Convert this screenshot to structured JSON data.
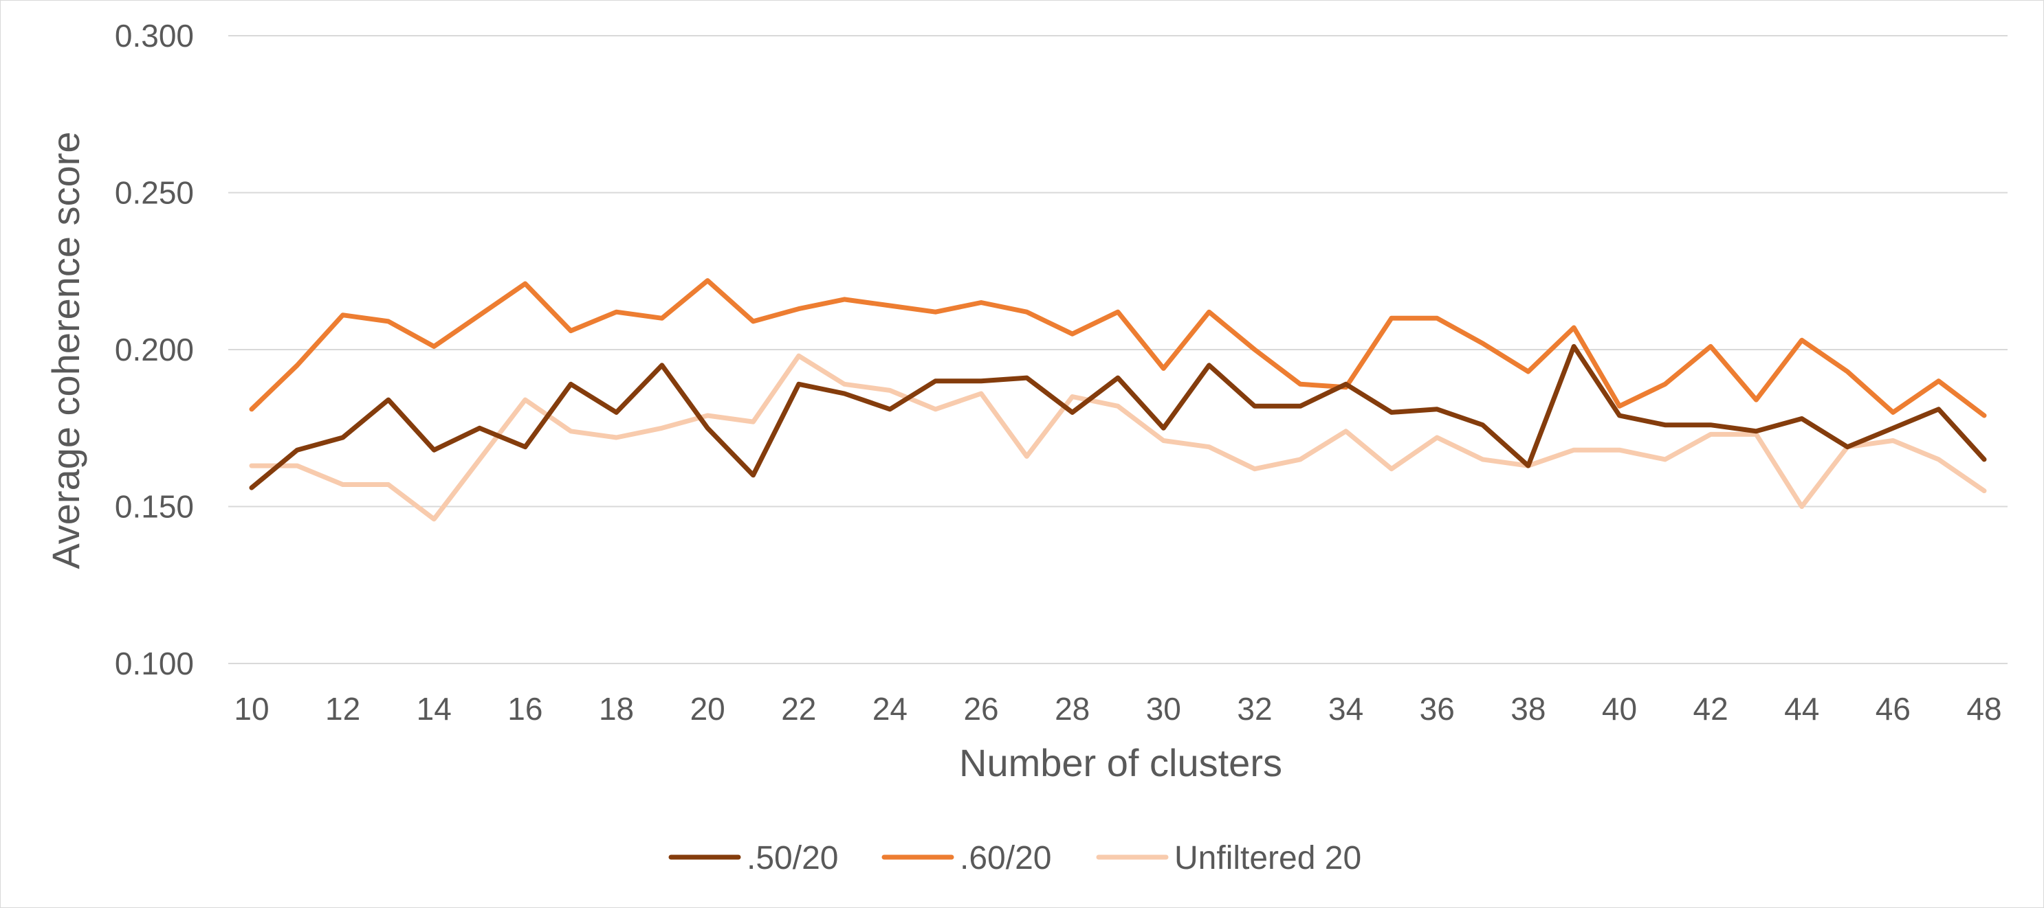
{
  "chart_data": {
    "type": "line",
    "title": "",
    "xlabel": "Number of clusters",
    "ylabel": "Average coherence score",
    "x": [
      10,
      11,
      12,
      13,
      14,
      15,
      16,
      17,
      18,
      19,
      20,
      21,
      22,
      23,
      24,
      25,
      26,
      27,
      28,
      29,
      30,
      31,
      32,
      33,
      34,
      35,
      36,
      37,
      38,
      39,
      40,
      41,
      42,
      43,
      44,
      45,
      46,
      47,
      48
    ],
    "x_tick_labels": [
      "10",
      "12",
      "14",
      "16",
      "18",
      "20",
      "22",
      "24",
      "26",
      "28",
      "30",
      "32",
      "34",
      "36",
      "38",
      "40",
      "42",
      "44",
      "46",
      "48"
    ],
    "y_tick_labels": [
      "0.100",
      "0.150",
      "0.200",
      "0.250",
      "0.300"
    ],
    "ylim": [
      0.1,
      0.3
    ],
    "grid": true,
    "legend_position": "bottom",
    "series": [
      {
        "name": ".50/20",
        "color": "#843c0c",
        "values": [
          0.156,
          0.168,
          0.172,
          0.184,
          0.168,
          0.175,
          0.169,
          0.189,
          0.18,
          0.195,
          0.175,
          0.16,
          0.189,
          0.186,
          0.181,
          0.19,
          0.19,
          0.191,
          0.18,
          0.191,
          0.175,
          0.195,
          0.182,
          0.182,
          0.189,
          0.18,
          0.181,
          0.176,
          0.163,
          0.201,
          0.179,
          0.176,
          0.176,
          0.174,
          0.178,
          0.169,
          0.175,
          0.181,
          0.165
        ]
      },
      {
        "name": ".60/20",
        "color": "#ed7d31",
        "values": [
          0.181,
          0.195,
          0.211,
          0.209,
          0.201,
          0.211,
          0.221,
          0.206,
          0.212,
          0.21,
          0.222,
          0.209,
          0.213,
          0.216,
          0.214,
          0.212,
          0.215,
          0.212,
          0.205,
          0.212,
          0.194,
          0.212,
          0.2,
          0.189,
          0.188,
          0.21,
          0.21,
          0.202,
          0.193,
          0.207,
          0.182,
          0.189,
          0.201,
          0.184,
          0.203,
          0.193,
          0.18,
          0.19,
          0.179
        ]
      },
      {
        "name": "Unfiltered 20",
        "color": "#f8cbad",
        "values": [
          0.163,
          0.163,
          0.157,
          0.157,
          0.146,
          0.165,
          0.184,
          0.174,
          0.172,
          0.175,
          0.179,
          0.177,
          0.198,
          0.189,
          0.187,
          0.181,
          0.186,
          0.166,
          0.185,
          0.182,
          0.171,
          0.169,
          0.162,
          0.165,
          0.174,
          0.162,
          0.172,
          0.165,
          0.163,
          0.168,
          0.168,
          0.165,
          0.173,
          0.173,
          0.15,
          0.169,
          0.171,
          0.165,
          0.155
        ]
      }
    ]
  }
}
